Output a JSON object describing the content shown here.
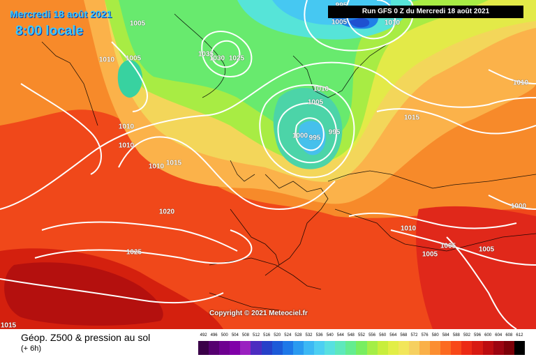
{
  "header": {
    "date_title": "Mercredi 18 août 2021",
    "time_title": "8:00 locale",
    "run_info": "Run GFS 0 Z du Mercredi 18 août 2021"
  },
  "footer": {
    "copyright": "Copyright © 2021 Meteociel.fr",
    "legend_title": "Géop. Z500 & pression au sol",
    "legend_sub": "(+ 6h)"
  },
  "isobar_labels": [
    "1005",
    "1010",
    "1015",
    "1020",
    "1025",
    "1030",
    "1000",
    "995",
    "1035"
  ],
  "scale": {
    "ticks": [
      "492",
      "496",
      "500",
      "504",
      "508",
      "512",
      "516",
      "520",
      "524",
      "528",
      "532",
      "536",
      "540",
      "544",
      "548",
      "552",
      "556",
      "560",
      "564",
      "568",
      "572",
      "576",
      "580",
      "584",
      "588",
      "592",
      "596",
      "600",
      "604",
      "608",
      "612"
    ],
    "colors": [
      "#3a0048",
      "#560070",
      "#6e0090",
      "#8000a8",
      "#9a20c0",
      "#4c2cc0",
      "#2640c8",
      "#1c5ad8",
      "#1e78e8",
      "#2a9af0",
      "#3cb8f4",
      "#4ccff2",
      "#58e0e0",
      "#5ee8bc",
      "#64ec90",
      "#78ee60",
      "#a4ee46",
      "#c8ee3c",
      "#e2ee46",
      "#f2e65a",
      "#f6d060",
      "#fab048",
      "#fc8e30",
      "#fc6a20",
      "#f84818",
      "#ec2a14",
      "#d81a12",
      "#bc0c10",
      "#9c0410",
      "#7c0008",
      "#000000"
    ]
  }
}
